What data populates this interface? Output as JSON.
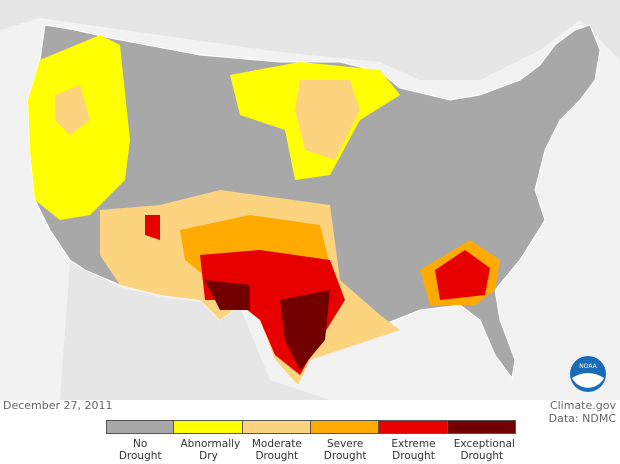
{
  "map": {
    "logo": "NOAA",
    "date": "December 27, 2011",
    "credit": [
      "Climate.gov",
      "Data: NDMC"
    ],
    "legend": [
      {
        "label": "No Drought",
        "color": "#a8a8a8"
      },
      {
        "label": "Abnormally Dry",
        "color": "#ffff00"
      },
      {
        "label": "Moderate Drought",
        "color": "#fcd37f"
      },
      {
        "label": "Severe Drought",
        "color": "#ffaa00"
      },
      {
        "label": "Extreme Drought",
        "color": "#e60000"
      },
      {
        "label": "Exceptional Drought",
        "color": "#730000"
      }
    ]
  }
}
